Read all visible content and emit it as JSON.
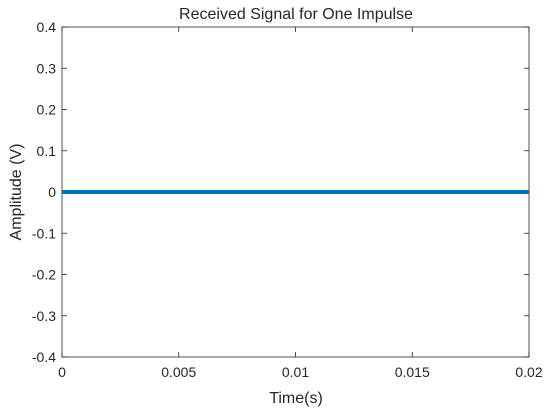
{
  "chart_data": {
    "type": "line",
    "title": "Received Signal for One Impulse",
    "xlabel": "Time(s)",
    "ylabel": "Amplitude (V)",
    "xlim": [
      0,
      0.02
    ],
    "ylim": [
      -0.4,
      0.4
    ],
    "xticks": [
      0,
      0.005,
      0.01,
      0.015,
      0.02
    ],
    "xtick_labels": [
      "0",
      "0.005",
      "0.01",
      "0.015",
      "0.02"
    ],
    "yticks": [
      -0.4,
      -0.3,
      -0.2,
      -0.1,
      0,
      0.1,
      0.2,
      0.3,
      0.4
    ],
    "ytick_labels": [
      "-0.4",
      "-0.3",
      "-0.2",
      "-0.1",
      "0",
      "0.1",
      "0.2",
      "0.3",
      "0.4"
    ],
    "grid": false,
    "legend": "none",
    "series": [
      {
        "color": "#0072BD",
        "x": [
          0,
          0.0025,
          0.005,
          0.0075,
          0.01,
          0.0125,
          0.015,
          0.0175,
          0.02
        ],
        "y": [
          0,
          0,
          0,
          0,
          0,
          0,
          0,
          0,
          0
        ]
      }
    ]
  }
}
